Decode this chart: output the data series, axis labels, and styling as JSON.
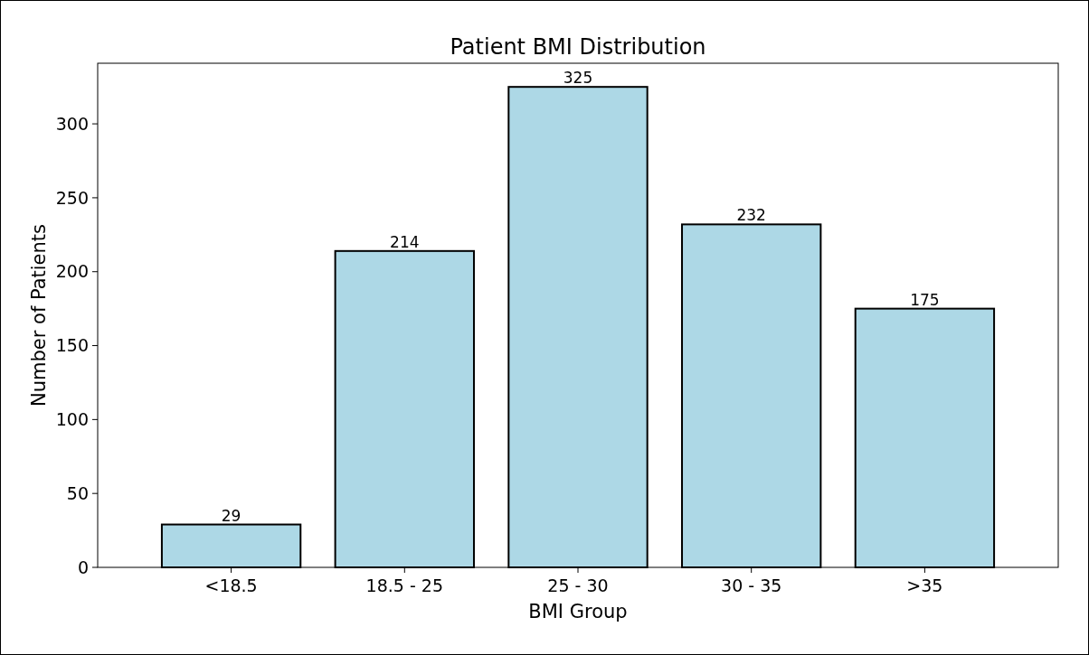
{
  "chart_data": {
    "type": "bar",
    "title": "Patient BMI Distribution",
    "xlabel": "BMI Group",
    "ylabel": "Number of Patients",
    "categories": [
      "<18.5",
      "18.5 - 25",
      "25 - 30",
      "30 - 35",
      ">35"
    ],
    "values": [
      29,
      214,
      325,
      232,
      175
    ],
    "color": "#add8e6",
    "ylim": [
      0,
      341
    ],
    "yticks": [
      0,
      50,
      100,
      150,
      200,
      250,
      300
    ],
    "data_labels": true
  }
}
